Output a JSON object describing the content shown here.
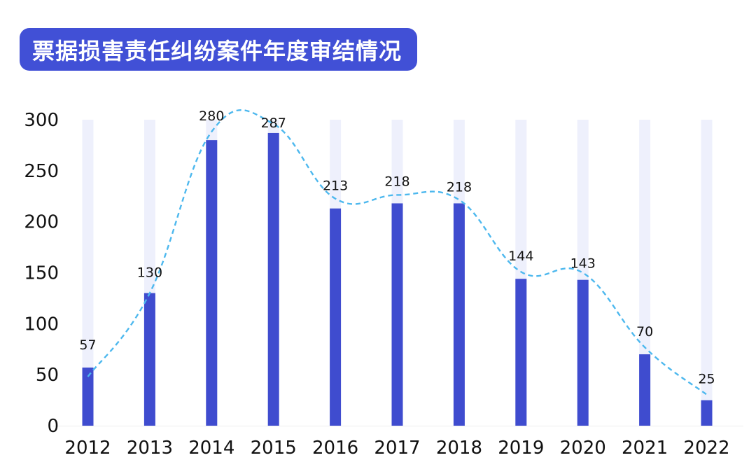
{
  "title": "票据损害责任纠纷案件年度审结情况",
  "colors": {
    "title_bg": "#4150d6",
    "title_text": "#ffffff",
    "bar": "#3f4ccf",
    "bar_track": "#eef0fc",
    "trend_line": "#4db8ee",
    "axis_line": "#eeeeee"
  },
  "chart_data": {
    "type": "bar",
    "title": "票据损害责任纠纷案件年度审结情况",
    "categories": [
      "2012",
      "2013",
      "2014",
      "2015",
      "2016",
      "2017",
      "2018",
      "2019",
      "2020",
      "2021",
      "2022"
    ],
    "values": [
      57,
      130,
      280,
      287,
      213,
      218,
      218,
      144,
      143,
      70,
      25
    ],
    "ylim": [
      0,
      300
    ],
    "yticks": [
      0,
      50,
      100,
      150,
      200,
      250,
      300
    ],
    "trend_line": "smoothed dashed curve",
    "grid": false,
    "legend": "none"
  }
}
